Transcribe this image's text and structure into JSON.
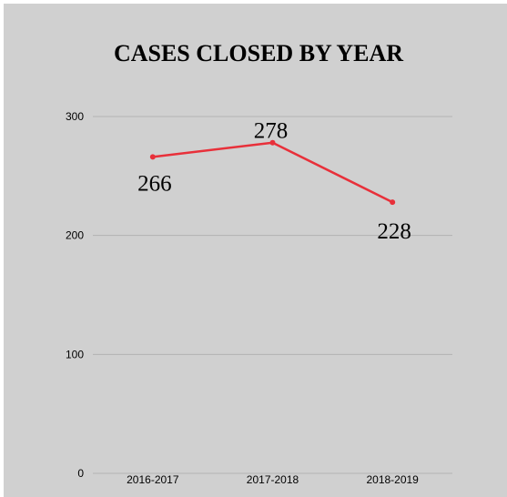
{
  "chart_data": {
    "type": "line",
    "title": "CASES CLOSED BY YEAR",
    "categories": [
      "2016-2017",
      "2017-2018",
      "2018-2019"
    ],
    "series": [
      {
        "values": [
          266,
          278,
          228
        ],
        "color": "#e8303a"
      }
    ],
    "data_labels": [
      "266",
      "278",
      "228"
    ],
    "yticks": [
      0,
      100,
      200,
      300
    ],
    "ylim": [
      0,
      300
    ],
    "grid": true,
    "legend": "none",
    "colors": {
      "background": "#d0d0d0",
      "gridline": "#b3b3b3",
      "line": "#e8303a"
    }
  }
}
